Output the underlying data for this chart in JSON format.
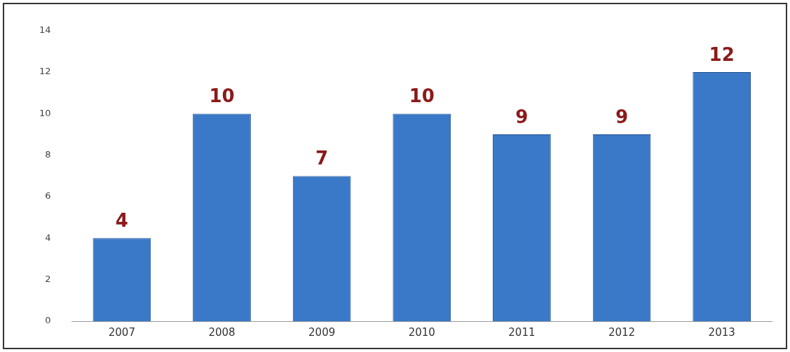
{
  "chart_data": {
    "type": "bar",
    "categories": [
      "2007",
      "2008",
      "2009",
      "2010",
      "2011",
      "2012",
      "2013"
    ],
    "values": [
      4,
      10,
      7,
      10,
      9,
      9,
      12
    ],
    "color": "#3a78c8",
    "ylim": [
      0,
      14
    ],
    "yticks": [
      0,
      2,
      4,
      6,
      8,
      10,
      12,
      14
    ],
    "data_labels": true,
    "grid": false,
    "legend": false
  }
}
